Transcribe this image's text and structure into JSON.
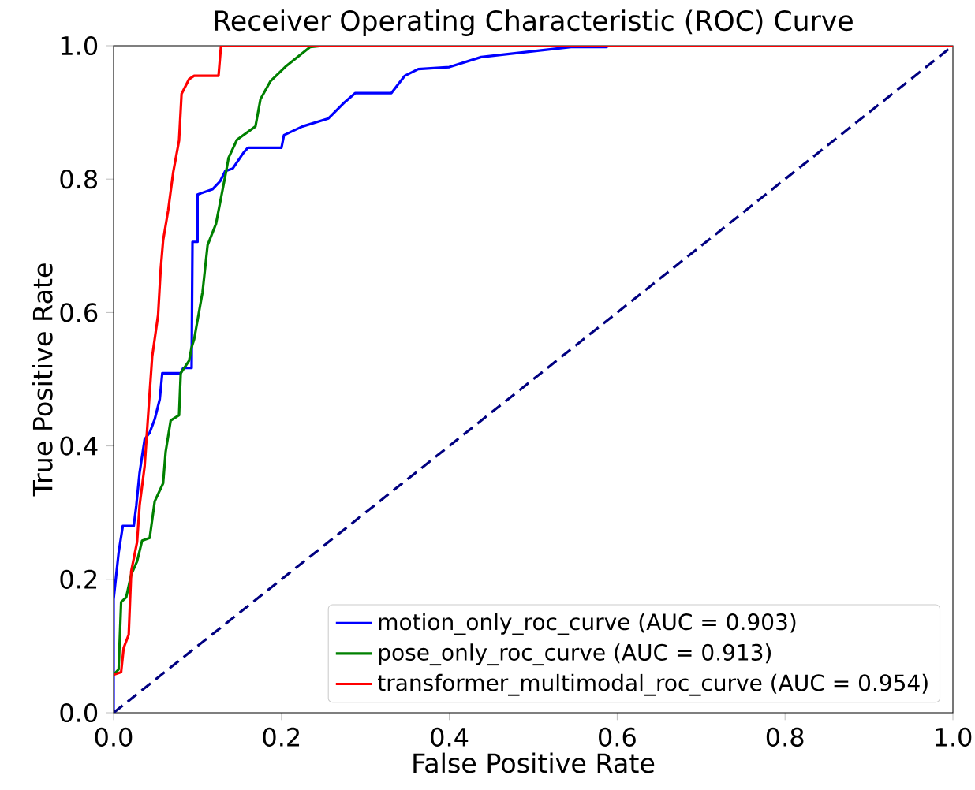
{
  "chart_data": {
    "type": "line",
    "title": "Receiver Operating Characteristic (ROC) Curve",
    "xlabel": "False Positive Rate",
    "ylabel": "True Positive Rate",
    "xlim": [
      0,
      1
    ],
    "ylim": [
      0,
      1
    ],
    "xticks": [
      {
        "value": 0,
        "label": "0.0"
      },
      {
        "value": 0.2,
        "label": "0.2"
      },
      {
        "value": 0.4,
        "label": "0.4"
      },
      {
        "value": 0.6,
        "label": "0.6"
      },
      {
        "value": 0.8,
        "label": "0.8"
      },
      {
        "value": 1,
        "label": "1.0"
      }
    ],
    "yticks": [
      {
        "value": 0,
        "label": "0.0"
      },
      {
        "value": 0.2,
        "label": "0.2"
      },
      {
        "value": 0.4,
        "label": "0.4"
      },
      {
        "value": 0.6,
        "label": "0.6"
      },
      {
        "value": 0.8,
        "label": "0.8"
      },
      {
        "value": 1,
        "label": "1.0"
      }
    ],
    "grid": false,
    "legend": "bottom right",
    "line_style": "solid",
    "series": [
      {
        "name": "motion_only_roc_curve (AUC = 0.903)",
        "color": "#0000ff",
        "x": [
          0,
          0,
          0.006,
          0.006,
          0.011,
          0.011,
          0.024,
          0.027,
          0.031,
          0.037,
          0.043,
          0.049,
          0.055,
          0.058,
          0.08,
          0.083,
          0.093,
          0.094,
          0.1,
          0.1,
          0.118,
          0.127,
          0.133,
          0.142,
          0.155,
          0.16,
          0.2,
          0.203,
          0.225,
          0.256,
          0.275,
          0.288,
          0.331,
          0.347,
          0.363,
          0.4,
          0.438,
          0.545,
          0.587,
          0.59,
          1
        ],
        "values": [
          0,
          0.17,
          0.24,
          0.24,
          0.28,
          0.28,
          0.28,
          0.31,
          0.36,
          0.41,
          0.42,
          0.44,
          0.47,
          0.509,
          0.509,
          0.517,
          0.517,
          0.706,
          0.706,
          0.777,
          0.785,
          0.797,
          0.812,
          0.816,
          0.84,
          0.847,
          0.847,
          0.866,
          0.879,
          0.891,
          0.915,
          0.929,
          0.929,
          0.955,
          0.965,
          0.968,
          0.983,
          0.998,
          0.998,
          1,
          1
        ]
      },
      {
        "name": "pose_only_roc_curve (AUC = 0.913)",
        "color": "#008000",
        "x": [
          0,
          0.006,
          0.009,
          0.015,
          0.021,
          0.028,
          0.034,
          0.043,
          0.049,
          0.059,
          0.062,
          0.068,
          0.078,
          0.08,
          0.09,
          0.093,
          0.096,
          0.106,
          0.112,
          0.122,
          0.128,
          0.134,
          0.137,
          0.147,
          0.169,
          0.175,
          0.187,
          0.206,
          0.234,
          0.25,
          1
        ],
        "values": [
          0.057,
          0.065,
          0.166,
          0.173,
          0.207,
          0.227,
          0.258,
          0.262,
          0.317,
          0.344,
          0.391,
          0.438,
          0.446,
          0.509,
          0.528,
          0.548,
          0.56,
          0.631,
          0.701,
          0.733,
          0.772,
          0.811,
          0.832,
          0.859,
          0.879,
          0.92,
          0.947,
          0.97,
          0.998,
          1,
          1
        ]
      },
      {
        "name": "transformer_multimodal_roc_curve (AUC = 0.954)",
        "color": "#ff0000",
        "x": [
          0,
          0.009,
          0.012,
          0.018,
          0.021,
          0.028,
          0.031,
          0.037,
          0.043,
          0.046,
          0.053,
          0.056,
          0.059,
          0.065,
          0.071,
          0.078,
          0.081,
          0.09,
          0.096,
          0.125,
          0.128,
          1
        ],
        "values": [
          0.057,
          0.061,
          0.097,
          0.117,
          0.212,
          0.256,
          0.311,
          0.37,
          0.48,
          0.534,
          0.596,
          0.663,
          0.708,
          0.753,
          0.81,
          0.858,
          0.928,
          0.95,
          0.955,
          0.955,
          1,
          1
        ]
      },
      {
        "color": "#000080",
        "line_style": "dashed",
        "x": [
          0,
          1
        ],
        "values": [
          0,
          1
        ]
      }
    ]
  }
}
